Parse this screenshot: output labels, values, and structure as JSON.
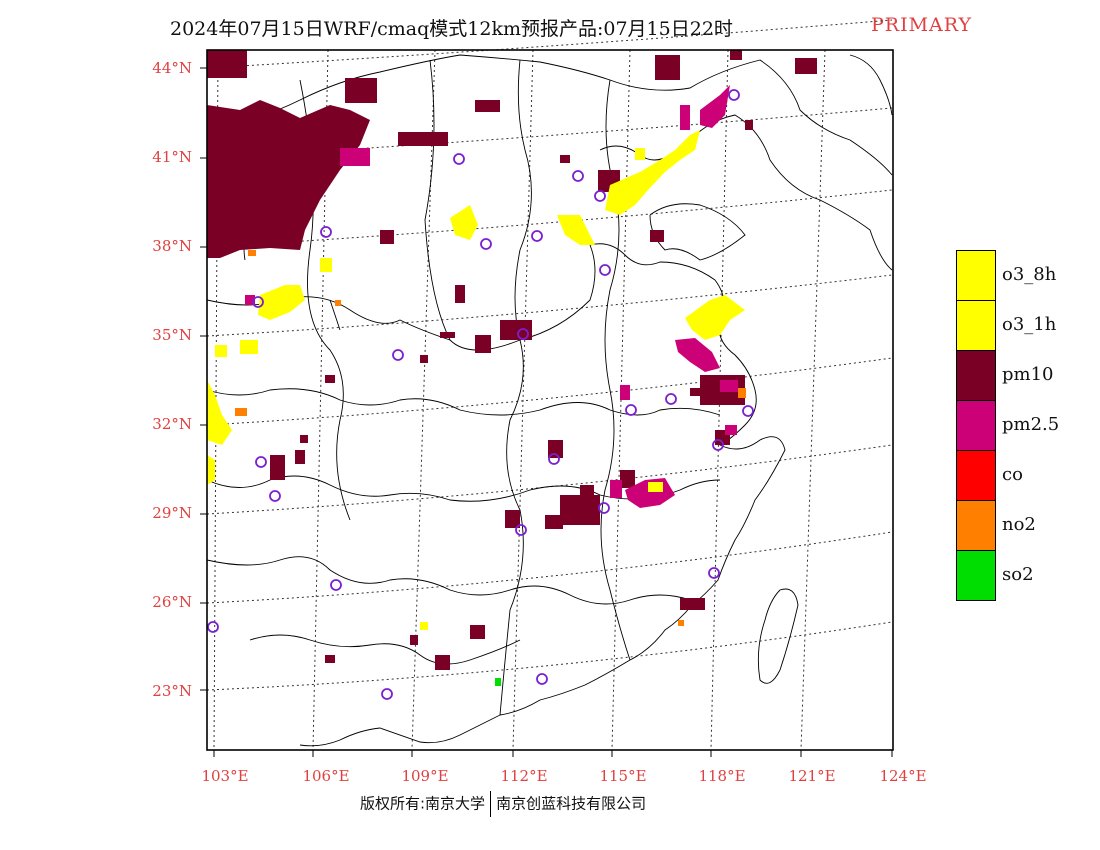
{
  "title": {
    "main": "2024年07月15日WRF/cmaq模式12km预报产品:07月15日22时",
    "tag": "PRIMARY"
  },
  "axes": {
    "lat_labels": [
      "44°N",
      "41°N",
      "38°N",
      "35°N",
      "32°N",
      "29°N",
      "26°N",
      "23°N"
    ],
    "lon_labels": [
      "103°E",
      "106°E",
      "109°E",
      "112°E",
      "115°E",
      "118°E",
      "121°E",
      "124°E"
    ],
    "label_color": "#e04040"
  },
  "legend": {
    "items": [
      {
        "label": "o3_8h",
        "color": "#ffff00"
      },
      {
        "label": "o3_1h",
        "color": "#ffff00"
      },
      {
        "label": "pm10",
        "color": "#7a0026"
      },
      {
        "label": "pm2.5",
        "color": "#cc0077"
      },
      {
        "label": "co",
        "color": "#ff0000"
      },
      {
        "label": "no2",
        "color": "#ff8000"
      },
      {
        "label": "so2",
        "color": "#00dd00"
      }
    ]
  },
  "footer": {
    "left": "版权所有:南京大学",
    "right": "南京创蓝科技有限公司"
  },
  "colors": {
    "pm10": "#7a0026",
    "pm25": "#cc0077",
    "o3": "#ffff00",
    "no2": "#ff8000",
    "so2": "#00dd00",
    "station": "#7a20d0"
  }
}
